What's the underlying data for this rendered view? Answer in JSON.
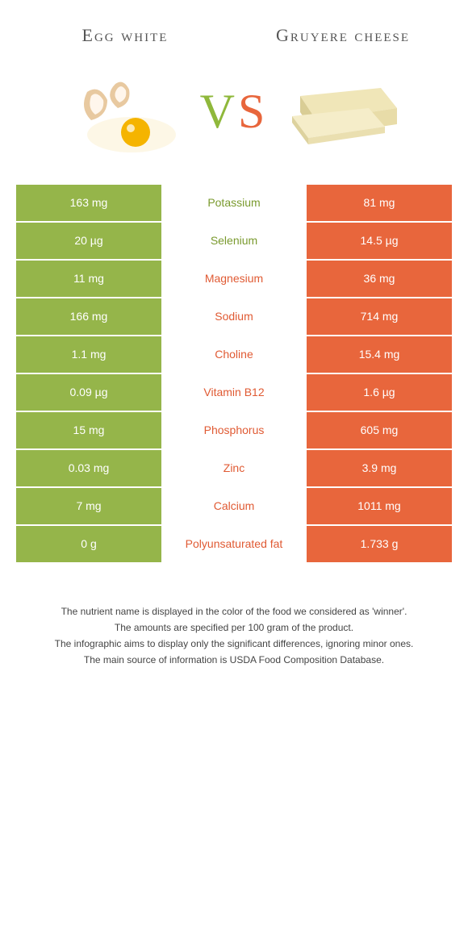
{
  "left_food": "Egg white",
  "right_food": "Gruyere cheese",
  "vs": {
    "v": "V",
    "s": "S"
  },
  "colors": {
    "left": "#95b54a",
    "right": "#e8663c",
    "left_text": "#7a9a2e",
    "right_text": "#e05a33"
  },
  "rows": [
    {
      "nutrient": "Potassium",
      "left": "163 mg",
      "right": "81 mg",
      "winner": "left"
    },
    {
      "nutrient": "Selenium",
      "left": "20 µg",
      "right": "14.5 µg",
      "winner": "left"
    },
    {
      "nutrient": "Magnesium",
      "left": "11 mg",
      "right": "36 mg",
      "winner": "right"
    },
    {
      "nutrient": "Sodium",
      "left": "166 mg",
      "right": "714 mg",
      "winner": "right"
    },
    {
      "nutrient": "Choline",
      "left": "1.1 mg",
      "right": "15.4 mg",
      "winner": "right"
    },
    {
      "nutrient": "Vitamin B12",
      "left": "0.09 µg",
      "right": "1.6 µg",
      "winner": "right"
    },
    {
      "nutrient": "Phosphorus",
      "left": "15 mg",
      "right": "605 mg",
      "winner": "right"
    },
    {
      "nutrient": "Zinc",
      "left": "0.03 mg",
      "right": "3.9 mg",
      "winner": "right"
    },
    {
      "nutrient": "Calcium",
      "left": "7 mg",
      "right": "1011 mg",
      "winner": "right"
    },
    {
      "nutrient": "Polyunsaturated fat",
      "left": "0 g",
      "right": "1.733 g",
      "winner": "right"
    }
  ],
  "footer": [
    "The nutrient name is displayed in the color of the food we considered as 'winner'.",
    "The amounts are specified per 100 gram of the product.",
    "The infographic aims to display only the significant differences, ignoring minor ones.",
    "The main source of information is USDA Food Composition Database."
  ]
}
